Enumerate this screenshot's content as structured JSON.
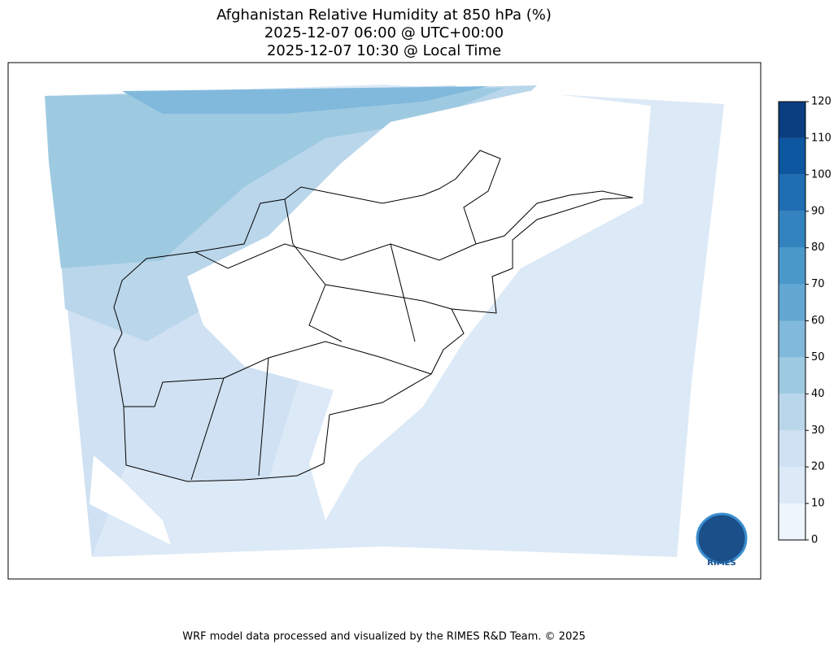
{
  "title": [
    "Afghanistan Relative Humidity at 850 hPa (%)",
    "2025-12-07 06:00 @ UTC+00:00",
    "2025-12-07 10:30 @ Local Time"
  ],
  "colorbar": {
    "levels": [
      0,
      10,
      20,
      30,
      40,
      50,
      60,
      70,
      80,
      90,
      100,
      110,
      120
    ],
    "colors": [
      "#eef5fc",
      "#dce9f6",
      "#cfe1f2",
      "#bad6eb",
      "#9ecae1",
      "#81b9dc",
      "#63a8d3",
      "#4a98c9",
      "#3383be",
      "#1f6eb3",
      "#0d57a1",
      "#0b3e80"
    ]
  },
  "logo": "RIMES",
  "footer": "WRF model data processed and visualized by the RIMES R&D Team. © 2025"
}
